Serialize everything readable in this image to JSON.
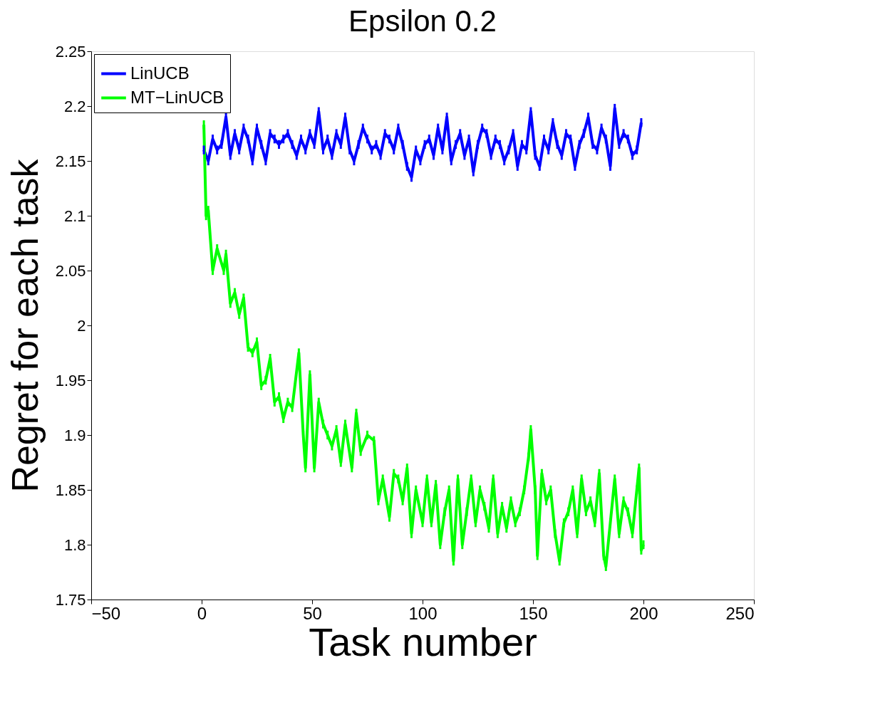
{
  "chart_data": {
    "type": "line",
    "title": "Epsilon 0.2",
    "xlabel": "Task number",
    "ylabel": "Regret for each task",
    "xlim": [
      -50,
      250
    ],
    "xticks": [
      -50,
      0,
      50,
      100,
      150,
      200,
      250
    ],
    "ylim": [
      1.75,
      2.25
    ],
    "yticks": [
      1.75,
      1.8,
      1.85,
      1.9,
      1.95,
      2,
      2.05,
      2.1,
      2.15,
      2.2,
      2.25
    ],
    "grid": false,
    "legend": "top left",
    "marker": "none",
    "line_style": "solid",
    "series": [
      {
        "name": "LinUCB",
        "color": "#0000ff",
        "x": [
          1,
          3,
          5,
          7,
          9,
          11,
          13,
          15,
          17,
          19,
          21,
          23,
          25,
          27,
          29,
          31,
          33,
          35,
          37,
          39,
          41,
          43,
          45,
          47,
          49,
          51,
          53,
          55,
          57,
          59,
          61,
          63,
          65,
          67,
          69,
          71,
          73,
          75,
          77,
          79,
          81,
          83,
          85,
          87,
          89,
          91,
          93,
          95,
          97,
          99,
          101,
          103,
          105,
          107,
          109,
          111,
          113,
          115,
          117,
          119,
          121,
          123,
          125,
          127,
          129,
          131,
          133,
          135,
          137,
          139,
          141,
          143,
          145,
          147,
          149,
          151,
          153,
          155,
          157,
          159,
          161,
          163,
          165,
          167,
          169,
          171,
          173,
          175,
          177,
          179,
          181,
          183,
          185,
          187,
          189,
          191,
          193,
          195,
          197,
          199
        ],
        "values": [
          2.16,
          2.15,
          2.17,
          2.16,
          2.165,
          2.19,
          2.155,
          2.175,
          2.16,
          2.18,
          2.17,
          2.15,
          2.18,
          2.165,
          2.15,
          2.175,
          2.17,
          2.165,
          2.17,
          2.175,
          2.165,
          2.155,
          2.17,
          2.16,
          2.175,
          2.165,
          2.195,
          2.16,
          2.17,
          2.155,
          2.175,
          2.165,
          2.19,
          2.16,
          2.15,
          2.165,
          2.18,
          2.17,
          2.16,
          2.165,
          2.155,
          2.175,
          2.17,
          2.16,
          2.18,
          2.165,
          2.145,
          2.135,
          2.16,
          2.15,
          2.165,
          2.17,
          2.155,
          2.18,
          2.16,
          2.19,
          2.15,
          2.165,
          2.175,
          2.155,
          2.17,
          2.14,
          2.165,
          2.18,
          2.175,
          2.155,
          2.17,
          2.165,
          2.15,
          2.16,
          2.175,
          2.145,
          2.165,
          2.16,
          2.195,
          2.155,
          2.145,
          2.17,
          2.16,
          2.185,
          2.165,
          2.155,
          2.175,
          2.17,
          2.145,
          2.165,
          2.175,
          2.19,
          2.165,
          2.16,
          2.18,
          2.17,
          2.145,
          2.198,
          2.165,
          2.175,
          2.17,
          2.155,
          2.16,
          2.185
        ],
        "errors": [
          0.004,
          0.004,
          0.004,
          0.004,
          0.004,
          0.004,
          0.004,
          0.004,
          0.004,
          0.004,
          0.004,
          0.004,
          0.004,
          0.004,
          0.004,
          0.004,
          0.004,
          0.004,
          0.004,
          0.004,
          0.004,
          0.004,
          0.004,
          0.004,
          0.004,
          0.004,
          0.004,
          0.004,
          0.004,
          0.004,
          0.004,
          0.004,
          0.004,
          0.004,
          0.004,
          0.004,
          0.004,
          0.004,
          0.004,
          0.004,
          0.004,
          0.004,
          0.004,
          0.004,
          0.004,
          0.004,
          0.004,
          0.004,
          0.004,
          0.004,
          0.004,
          0.004,
          0.004,
          0.004,
          0.004,
          0.004,
          0.004,
          0.004,
          0.004,
          0.004,
          0.004,
          0.004,
          0.004,
          0.004,
          0.004,
          0.004,
          0.004,
          0.004,
          0.004,
          0.004,
          0.004,
          0.004,
          0.004,
          0.004,
          0.004,
          0.004,
          0.004,
          0.004,
          0.004,
          0.004,
          0.004,
          0.004,
          0.004,
          0.004,
          0.004,
          0.004,
          0.004,
          0.004,
          0.004,
          0.004,
          0.004,
          0.004,
          0.004,
          0.004,
          0.004,
          0.004,
          0.004,
          0.004,
          0.004,
          0.004
        ]
      },
      {
        "name": "MT−LinUCB",
        "color": "#00ff00",
        "x": [
          1,
          2,
          3,
          5,
          7,
          10,
          11,
          13,
          15,
          17,
          19,
          21,
          23,
          25,
          27,
          29,
          31,
          33,
          35,
          37,
          39,
          41,
          44,
          46,
          47,
          49,
          51,
          53,
          55,
          57,
          59,
          61,
          63,
          65,
          68,
          70,
          72,
          75,
          78,
          80,
          82,
          85,
          87,
          89,
          91,
          93,
          95,
          97,
          100,
          102,
          104,
          106,
          108,
          110,
          112,
          114,
          116,
          118,
          120,
          122,
          124,
          126,
          128,
          130,
          132,
          134,
          136,
          138,
          140,
          142,
          144,
          146,
          148,
          149,
          151,
          152,
          154,
          156,
          158,
          160,
          162,
          164,
          166,
          168,
          170,
          172,
          174,
          176,
          178,
          180,
          182,
          183,
          185,
          187,
          189,
          191,
          193,
          195,
          197,
          198,
          199,
          200
        ],
        "values": [
          2.183,
          2.1,
          2.105,
          2.05,
          2.07,
          2.05,
          2.065,
          2.02,
          2.03,
          2.01,
          2.025,
          1.98,
          1.975,
          1.985,
          1.945,
          1.95,
          1.97,
          1.93,
          1.935,
          1.915,
          1.93,
          1.925,
          1.975,
          1.9,
          1.87,
          1.955,
          1.87,
          1.93,
          1.91,
          1.9,
          1.89,
          1.905,
          1.875,
          1.91,
          1.87,
          1.92,
          1.885,
          1.9,
          1.895,
          1.84,
          1.86,
          1.825,
          1.865,
          1.86,
          1.84,
          1.87,
          1.81,
          1.85,
          1.82,
          1.86,
          1.82,
          1.855,
          1.8,
          1.83,
          1.85,
          1.785,
          1.86,
          1.8,
          1.83,
          1.86,
          1.82,
          1.85,
          1.835,
          1.815,
          1.86,
          1.81,
          1.835,
          1.815,
          1.84,
          1.82,
          1.83,
          1.85,
          1.88,
          1.905,
          1.85,
          1.79,
          1.865,
          1.84,
          1.85,
          1.81,
          1.785,
          1.82,
          1.83,
          1.85,
          1.81,
          1.86,
          1.83,
          1.84,
          1.82,
          1.865,
          1.79,
          1.78,
          1.82,
          1.86,
          1.81,
          1.84,
          1.83,
          1.81,
          1.85,
          1.87,
          1.795,
          1.8
        ],
        "errors": [
          0.004,
          0.004,
          0.004,
          0.004,
          0.004,
          0.004,
          0.004,
          0.004,
          0.004,
          0.004,
          0.004,
          0.004,
          0.004,
          0.004,
          0.004,
          0.004,
          0.004,
          0.004,
          0.004,
          0.004,
          0.004,
          0.004,
          0.004,
          0.004,
          0.004,
          0.004,
          0.004,
          0.004,
          0.004,
          0.004,
          0.004,
          0.004,
          0.004,
          0.004,
          0.004,
          0.004,
          0.004,
          0.004,
          0.004,
          0.004,
          0.004,
          0.004,
          0.004,
          0.004,
          0.004,
          0.004,
          0.004,
          0.004,
          0.004,
          0.004,
          0.004,
          0.004,
          0.004,
          0.004,
          0.004,
          0.004,
          0.004,
          0.004,
          0.004,
          0.004,
          0.004,
          0.004,
          0.004,
          0.004,
          0.004,
          0.004,
          0.004,
          0.004,
          0.004,
          0.004,
          0.004,
          0.004,
          0.004,
          0.004,
          0.004,
          0.004,
          0.004,
          0.004,
          0.004,
          0.004,
          0.004,
          0.004,
          0.004,
          0.004,
          0.004,
          0.004,
          0.004,
          0.004,
          0.004,
          0.004,
          0.004,
          0.004,
          0.004,
          0.004,
          0.004,
          0.004,
          0.004,
          0.004,
          0.004,
          0.004,
          0.004,
          0.004
        ]
      }
    ]
  }
}
